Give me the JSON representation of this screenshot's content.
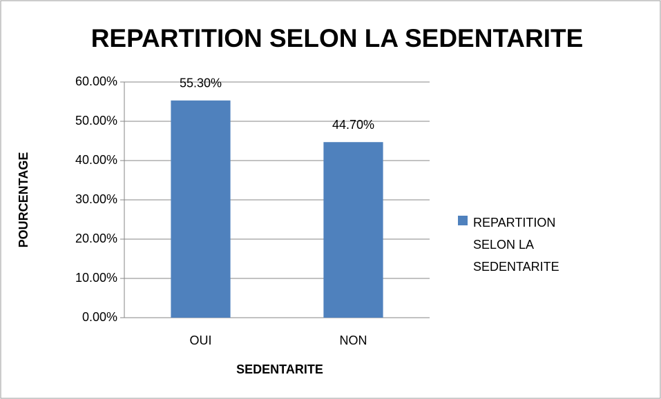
{
  "chart_data": {
    "type": "bar",
    "title": "REPARTITION SELON LA SEDENTARITE",
    "x_label": "SEDENTARITE",
    "y_label": "POURCENTAGE",
    "categories": [
      "OUI",
      "NON"
    ],
    "series": [
      {
        "name": "REPARTITION SELON LA SEDENTARITE",
        "color": "#4f81bd",
        "values": [
          55.3,
          44.7
        ],
        "value_labels": [
          "55.30%",
          "44.70%"
        ]
      }
    ],
    "ylim": [
      0,
      60
    ],
    "yticks": [
      {
        "value": 0,
        "label": "0.00%"
      },
      {
        "value": 10,
        "label": "10.00%"
      },
      {
        "value": 20,
        "label": "20.00%"
      },
      {
        "value": 30,
        "label": "30.00%"
      },
      {
        "value": 40,
        "label": "40.00%"
      },
      {
        "value": 50,
        "label": "50.00%"
      },
      {
        "value": 60,
        "label": "60.00%"
      }
    ],
    "grid": true,
    "legend": "right"
  }
}
